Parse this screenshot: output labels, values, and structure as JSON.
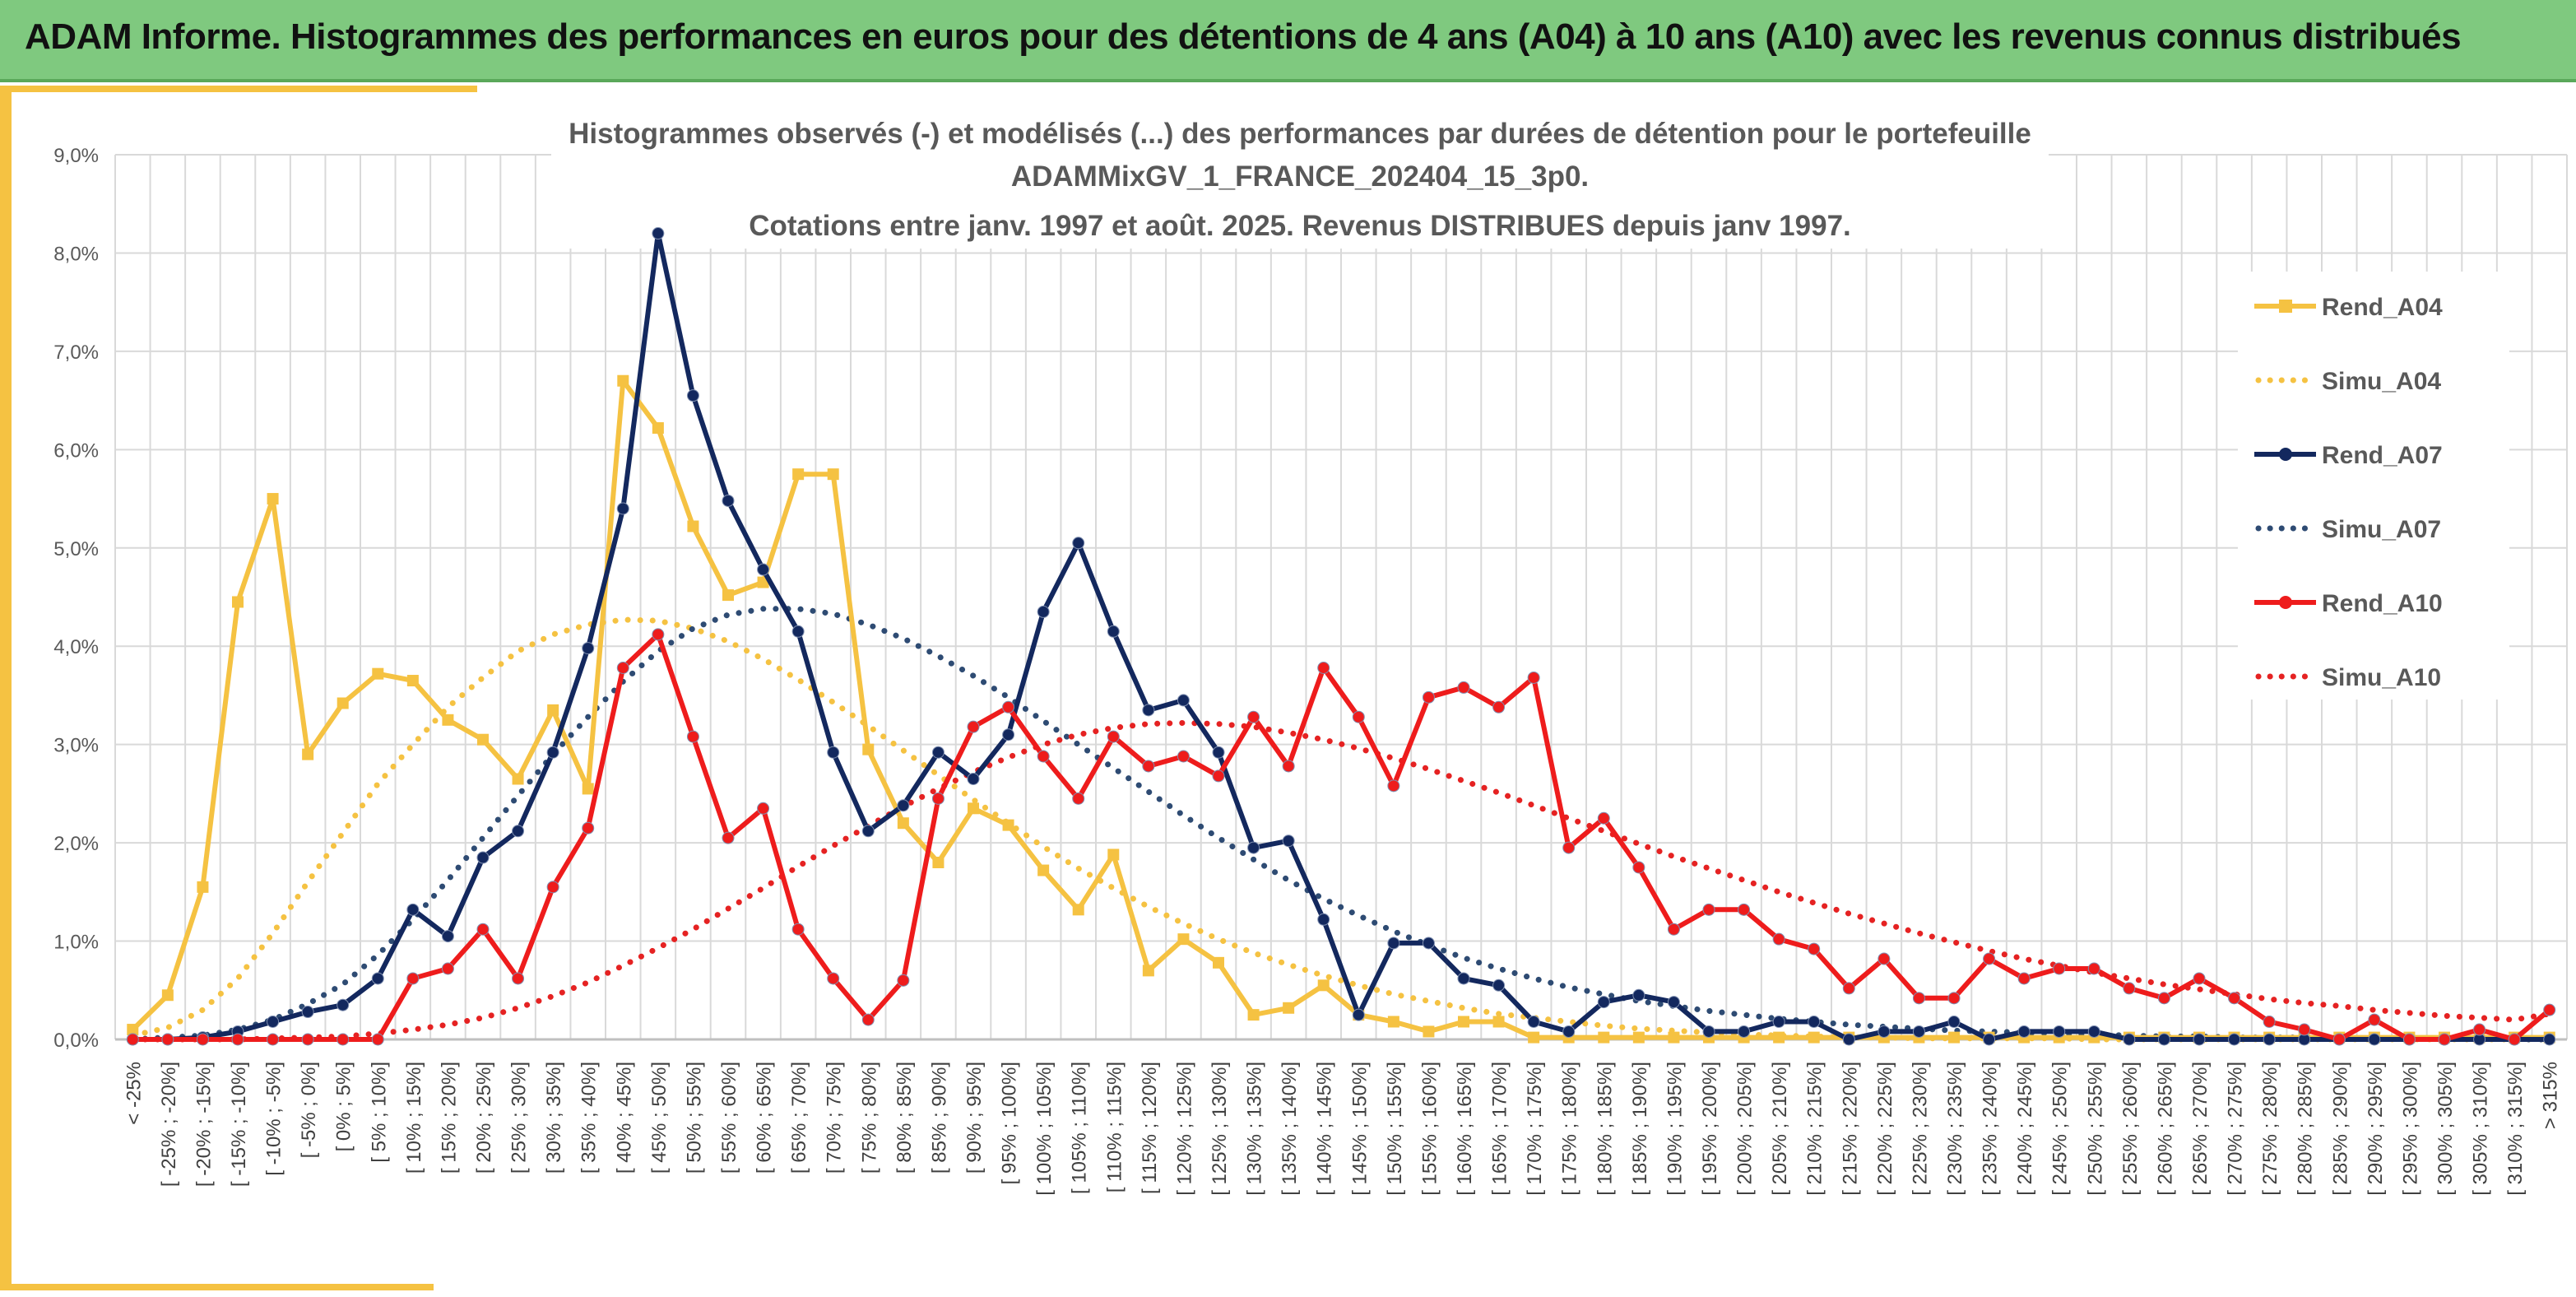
{
  "header": {
    "title": "ADAM Informe. Histogrammes des performances en euros pour des détentions de 4 ans (A04) à 10 ans (A10) avec les revenus connus distribués"
  },
  "chart_data": {
    "type": "line",
    "title_lines": [
      "Histogrammes observés (-) et modélisés (...) des performances par durées de détention pour le portefeuille",
      "ADAMMixGV_1_FRANCE_202404_15_3p0.",
      "Cotations entre janv. 1997 et août. 2025. Revenus DISTRIBUES depuis janv 1997."
    ],
    "ylim": [
      0,
      9
    ],
    "y_ticks": [
      "0,0%",
      "1,0%",
      "2,0%",
      "3,0%",
      "4,0%",
      "5,0%",
      "6,0%",
      "7,0%",
      "8,0%",
      "9,0%"
    ],
    "grid": true,
    "legend_position": "right",
    "categories": [
      "< -25%",
      "[ -25% ; -20%]",
      "[ -20% ; -15%]",
      "[ -15% ; -10%]",
      "[ -10% ; -5%]",
      "[ -5% ; 0%]",
      "[ 0% ; 5%]",
      "[ 5% ; 10%]",
      "[ 10% ; 15%]",
      "[ 15% ; 20%]",
      "[ 20% ; 25%]",
      "[ 25% ; 30%]",
      "[ 30% ; 35%]",
      "[ 35% ; 40%]",
      "[ 40% ; 45%]",
      "[ 45% ; 50%]",
      "[ 50% ; 55%]",
      "[ 55% ; 60%]",
      "[ 60% ; 65%]",
      "[ 65% ; 70%]",
      "[ 70% ; 75%]",
      "[ 75% ; 80%]",
      "[ 80% ; 85%]",
      "[ 85% ; 90%]",
      "[ 90% ; 95%]",
      "[ 95% ; 100%]",
      "[ 100% ; 105%]",
      "[ 105% ; 110%]",
      "[ 110% ; 115%]",
      "[ 115% ; 120%]",
      "[ 120% ; 125%]",
      "[ 125% ; 130%]",
      "[ 130% ; 135%]",
      "[ 135% ; 140%]",
      "[ 140% ; 145%]",
      "[ 145% ; 150%]",
      "[ 150% ; 155%]",
      "[ 155% ; 160%]",
      "[ 160% ; 165%]",
      "[ 165% ; 170%]",
      "[ 170% ; 175%]",
      "[ 175% ; 180%]",
      "[ 180% ; 185%]",
      "[ 185% ; 190%]",
      "[ 190% ; 195%]",
      "[ 195% ; 200%]",
      "[ 200% ; 205%]",
      "[ 205% ; 210%]",
      "[ 210% ; 215%]",
      "[ 215% ; 220%]",
      "[ 220% ; 225%]",
      "[ 225% ; 230%]",
      "[ 230% ; 235%]",
      "[ 235% ; 240%]",
      "[ 240% ; 245%]",
      "[ 245% ; 250%]",
      "[ 250% ; 255%]",
      "[ 255% ; 260%]",
      "[ 260% ; 265%]",
      "[ 265% ; 270%]",
      "[ 270% ; 275%]",
      "[ 275% ; 280%]",
      "[ 280% ; 285%]",
      "[ 285% ; 290%]",
      "[ 290% ; 295%]",
      "[ 295% ; 300%]",
      "[ 300% ; 305%]",
      "[ 305% ; 310%]",
      "[ 310% ; 315%]",
      "> 315%"
    ],
    "series": [
      {
        "name": "Rend_A04",
        "style": "solid",
        "marker": "square",
        "color": "#f5c242",
        "values": [
          0.1,
          0.45,
          1.55,
          4.45,
          5.5,
          2.9,
          3.42,
          3.72,
          3.65,
          3.25,
          3.05,
          2.65,
          3.35,
          2.55,
          6.7,
          6.22,
          5.22,
          4.52,
          4.65,
          5.75,
          5.75,
          2.95,
          2.2,
          1.8,
          2.35,
          2.18,
          1.72,
          1.32,
          1.88,
          0.7,
          1.02,
          0.78,
          0.25,
          0.32,
          0.55,
          0.25,
          0.18,
          0.08,
          0.18,
          0.18,
          0.02,
          0.02,
          0.02,
          0.02,
          0.02,
          0.02,
          0.02,
          0.02,
          0.02,
          0.02,
          0.02,
          0.02,
          0.02,
          0.02,
          0.02,
          0.02,
          0.02,
          0.02,
          0.02,
          0.02,
          0.02,
          0.02,
          0.02,
          0.02,
          0.02,
          0.02,
          0.02,
          0.02,
          0.02,
          0.02
        ]
      },
      {
        "name": "Simu_A04",
        "style": "dotted",
        "color": "#f5c242",
        "values": [
          0.04,
          0.12,
          0.3,
          0.62,
          1.08,
          1.6,
          2.1,
          2.6,
          3.0,
          3.38,
          3.68,
          3.95,
          4.12,
          4.22,
          4.27,
          4.26,
          4.18,
          4.05,
          3.87,
          3.66,
          3.43,
          3.19,
          2.94,
          2.69,
          2.44,
          2.2,
          1.96,
          1.74,
          1.54,
          1.35,
          1.18,
          1.02,
          0.88,
          0.76,
          0.65,
          0.55,
          0.46,
          0.39,
          0.32,
          0.26,
          0.22,
          0.18,
          0.14,
          0.11,
          0.09,
          0.07,
          0.05,
          0.04,
          0.03,
          0.02,
          0.02,
          0.01,
          0.01,
          0.01,
          0.01,
          0.01,
          0.0,
          0.0,
          0.0,
          0.0,
          0.0,
          0.0,
          0.0,
          0.0,
          0.0,
          0.0,
          0.0,
          0.0,
          0.0,
          0.0
        ]
      },
      {
        "name": "Rend_A07",
        "style": "solid",
        "marker": "circle",
        "color": "#13285e",
        "values": [
          0.0,
          0.0,
          0.02,
          0.08,
          0.18,
          0.28,
          0.35,
          0.62,
          1.32,
          1.05,
          1.85,
          2.12,
          2.92,
          3.98,
          5.4,
          8.2,
          6.55,
          5.48,
          4.78,
          4.15,
          2.92,
          2.12,
          2.38,
          2.92,
          2.65,
          3.1,
          4.35,
          5.05,
          4.15,
          3.35,
          3.45,
          2.92,
          1.95,
          2.02,
          1.22,
          0.25,
          0.98,
          0.98,
          0.62,
          0.55,
          0.18,
          0.08,
          0.38,
          0.45,
          0.38,
          0.08,
          0.08,
          0.18,
          0.18,
          0.0,
          0.08,
          0.08,
          0.18,
          0.0,
          0.08,
          0.08,
          0.08,
          0.0,
          0.0,
          0.0,
          0.0,
          0.0,
          0.0,
          0.0,
          0.0,
          0.0,
          0.0,
          0.0,
          0.0,
          0.0
        ]
      },
      {
        "name": "Simu_A07",
        "style": "dotted",
        "color": "#2e4b73",
        "values": [
          0.0,
          0.02,
          0.04,
          0.1,
          0.2,
          0.36,
          0.56,
          0.86,
          1.22,
          1.62,
          2.05,
          2.48,
          2.9,
          3.28,
          3.64,
          3.95,
          4.18,
          4.32,
          4.38,
          4.38,
          4.33,
          4.22,
          4.08,
          3.9,
          3.7,
          3.48,
          3.24,
          3.0,
          2.76,
          2.52,
          2.28,
          2.05,
          1.83,
          1.62,
          1.43,
          1.26,
          1.1,
          0.96,
          0.83,
          0.72,
          0.62,
          0.53,
          0.46,
          0.39,
          0.34,
          0.29,
          0.25,
          0.21,
          0.18,
          0.15,
          0.13,
          0.11,
          0.09,
          0.08,
          0.07,
          0.06,
          0.05,
          0.04,
          0.03,
          0.03,
          0.02,
          0.02,
          0.02,
          0.01,
          0.01,
          0.01,
          0.01,
          0.01,
          0.0,
          0.0
        ]
      },
      {
        "name": "Rend_A10",
        "style": "solid",
        "marker": "circle",
        "color": "#ee1c1c",
        "values": [
          0.0,
          0.0,
          0.0,
          0.0,
          0.0,
          0.0,
          0.0,
          0.0,
          0.62,
          0.72,
          1.12,
          0.62,
          1.55,
          2.15,
          3.78,
          4.12,
          3.08,
          2.05,
          2.35,
          1.12,
          0.62,
          0.2,
          0.6,
          2.45,
          3.18,
          3.38,
          2.88,
          2.45,
          3.08,
          2.78,
          2.88,
          2.68,
          3.28,
          2.78,
          3.78,
          3.28,
          2.58,
          3.48,
          3.58,
          3.38,
          3.68,
          1.95,
          2.25,
          1.75,
          1.12,
          1.32,
          1.32,
          1.02,
          0.92,
          0.52,
          0.82,
          0.42,
          0.42,
          0.82,
          0.62,
          0.72,
          0.72,
          0.52,
          0.42,
          0.62,
          0.42,
          0.18,
          0.1,
          0.0,
          0.2,
          0.0,
          0.0,
          0.1,
          0.0,
          0.3
        ]
      },
      {
        "name": "Simu_A10",
        "style": "dotted",
        "color": "#e52222",
        "values": [
          0.0,
          0.0,
          0.0,
          0.0,
          0.01,
          0.02,
          0.03,
          0.06,
          0.1,
          0.15,
          0.22,
          0.32,
          0.44,
          0.58,
          0.75,
          0.93,
          1.12,
          1.33,
          1.54,
          1.76,
          1.97,
          2.17,
          2.37,
          2.55,
          2.72,
          2.87,
          3.0,
          3.1,
          3.17,
          3.21,
          3.22,
          3.21,
          3.18,
          3.12,
          3.05,
          2.96,
          2.86,
          2.75,
          2.63,
          2.51,
          2.38,
          2.25,
          2.12,
          1.99,
          1.86,
          1.74,
          1.62,
          1.5,
          1.39,
          1.28,
          1.18,
          1.08,
          0.99,
          0.9,
          0.82,
          0.75,
          0.68,
          0.62,
          0.56,
          0.51,
          0.46,
          0.41,
          0.37,
          0.34,
          0.3,
          0.27,
          0.24,
          0.22,
          0.2,
          0.26
        ]
      }
    ]
  }
}
